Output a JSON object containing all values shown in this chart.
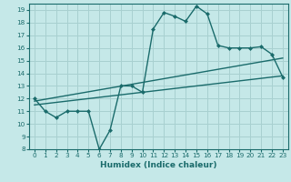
{
  "xlabel": "Humidex (Indice chaleur)",
  "bg_color": "#c5e8e8",
  "grid_color": "#a8d0d0",
  "line_color": "#1a6b6b",
  "xlim": [
    -0.5,
    23.5
  ],
  "ylim": [
    8,
    19.5
  ],
  "yticks": [
    8,
    9,
    10,
    11,
    12,
    13,
    14,
    15,
    16,
    17,
    18,
    19
  ],
  "xticks": [
    0,
    1,
    2,
    3,
    4,
    5,
    6,
    7,
    8,
    9,
    10,
    11,
    12,
    13,
    14,
    15,
    16,
    17,
    18,
    19,
    20,
    21,
    22,
    23
  ],
  "line1_x": [
    0,
    1,
    2,
    3,
    4,
    5,
    6,
    7,
    8,
    9,
    10,
    11,
    12,
    13,
    14,
    15,
    16,
    17,
    18,
    19,
    20,
    21,
    22,
    23
  ],
  "line1_y": [
    12,
    11,
    10.5,
    11,
    11,
    11,
    8,
    9.5,
    13,
    13,
    12.5,
    17.5,
    18.8,
    18.5,
    18.1,
    19.3,
    18.7,
    16.2,
    16.0,
    16.0,
    16.0,
    16.1,
    15.5,
    13.7
  ],
  "line2_x": [
    0,
    23
  ],
  "line2_y": [
    11.8,
    15.2
  ],
  "line3_x": [
    0,
    23
  ],
  "line3_y": [
    11.5,
    13.8
  ],
  "xlabel_fontsize": 6.5,
  "tick_fontsize": 5.2
}
